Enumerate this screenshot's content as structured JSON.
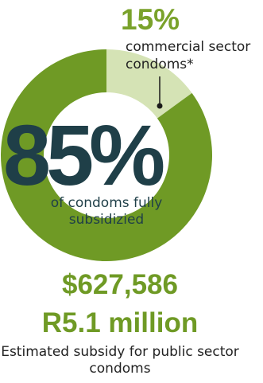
{
  "chart_data": {
    "type": "pie",
    "categories": [
      "of condoms fully subsidizied",
      "commercial sector condoms*"
    ],
    "values": [
      85,
      15
    ],
    "colors": [
      "#6f9a25",
      "#d5e3b5"
    ]
  },
  "labels": {
    "major_value": "85%",
    "major_text": "of condoms fully subsidizied",
    "minor_value": "15%",
    "minor_text": "commercial sector condoms*"
  },
  "subsidy": {
    "usd": "$627,586",
    "zar": "R5.1 million",
    "caption": "Estimated subsidy for public sector condoms"
  },
  "colors": {
    "accent_green": "#6f9a25",
    "dark_teal": "#1f3f48",
    "light_green": "#d5e3b5"
  }
}
